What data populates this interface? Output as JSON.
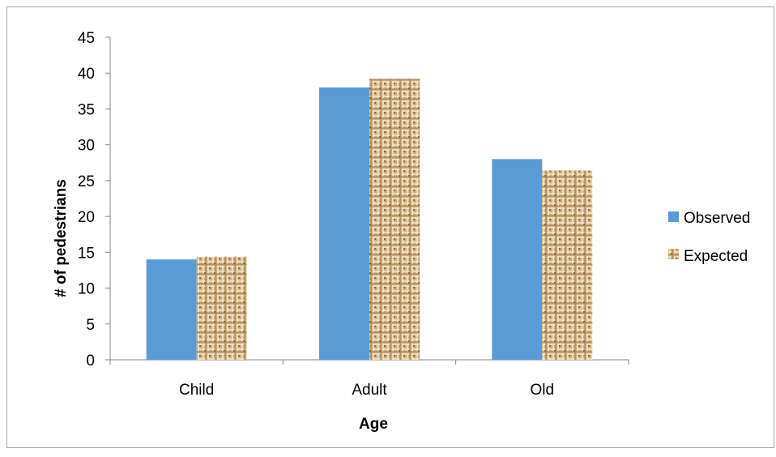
{
  "chart_data": {
    "type": "bar",
    "title": "",
    "xlabel": "Age",
    "ylabel": "# of pedestrians",
    "categories": [
      "Child",
      "Adult",
      "Old"
    ],
    "ylim": [
      0,
      45
    ],
    "yticks": [
      0,
      5,
      10,
      15,
      20,
      25,
      30,
      35,
      40,
      45
    ],
    "grid": false,
    "legend_position": "right",
    "series": [
      {
        "name": "Observed",
        "values": [
          14,
          38,
          28
        ],
        "color": "#5b9bd5",
        "fill": "solid"
      },
      {
        "name": "Expected",
        "values": [
          14.4,
          39.2,
          26.4
        ],
        "color": "#c8a36b",
        "fill": "burlap-texture"
      }
    ]
  }
}
